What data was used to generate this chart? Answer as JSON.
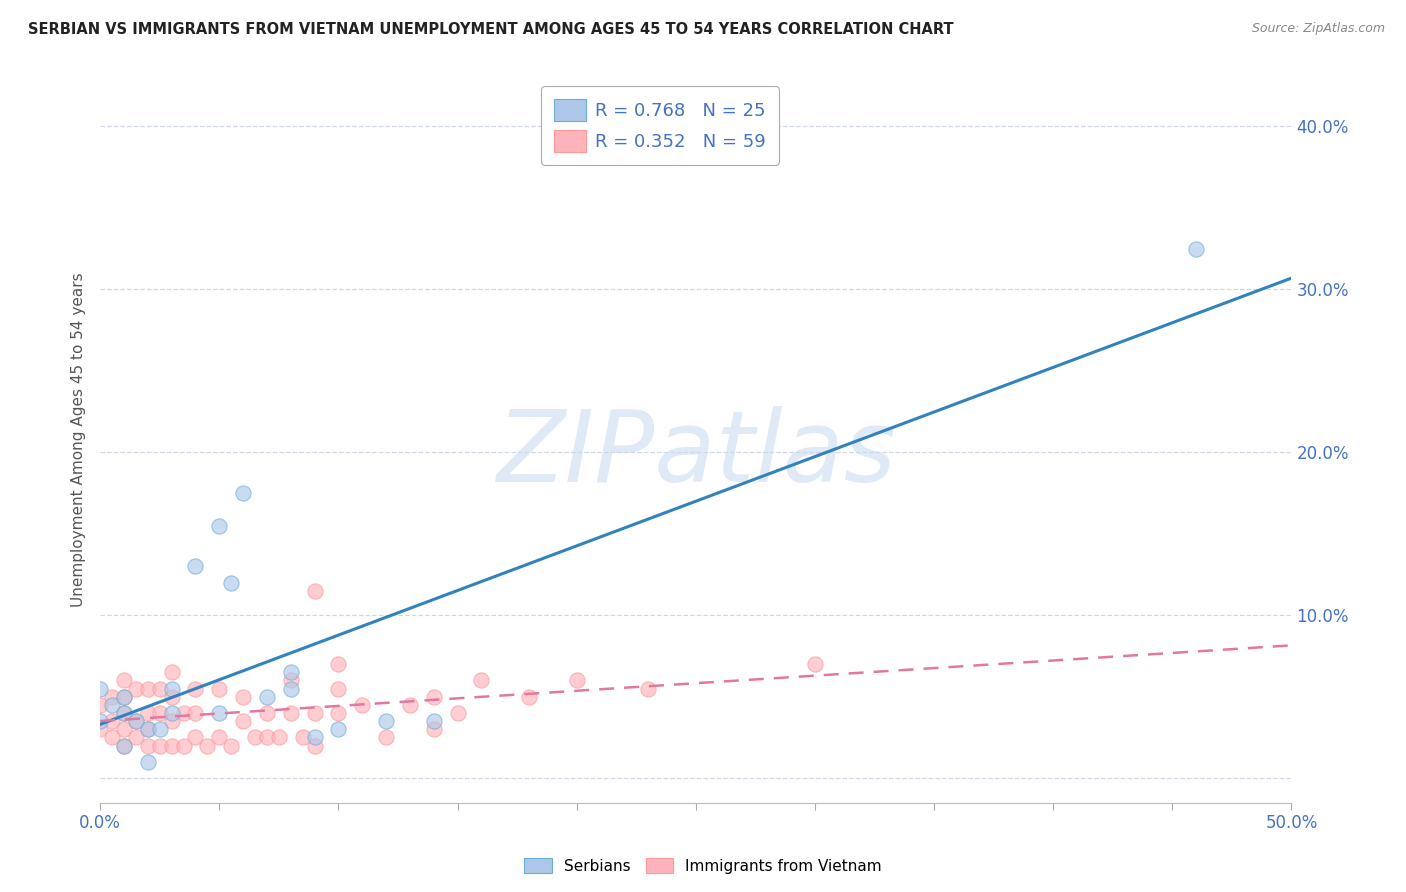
{
  "title": "SERBIAN VS IMMIGRANTS FROM VIETNAM UNEMPLOYMENT AMONG AGES 45 TO 54 YEARS CORRELATION CHART",
  "source": "Source: ZipAtlas.com",
  "ylabel": "Unemployment Among Ages 45 to 54 years",
  "xlabel": "",
  "xlim": [
    0,
    0.5
  ],
  "ylim": [
    -0.015,
    0.43
  ],
  "xticks": [
    0.0,
    0.05,
    0.1,
    0.15,
    0.2,
    0.25,
    0.3,
    0.35,
    0.4,
    0.45,
    0.5
  ],
  "ytick_positions": [
    0.0,
    0.1,
    0.2,
    0.3,
    0.4
  ],
  "ytick_labels": [
    "",
    "10.0%",
    "20.0%",
    "30.0%",
    "40.0%"
  ],
  "series1_name": "Serbians",
  "series1_R": 0.768,
  "series1_N": 25,
  "series1_color": "#aec7e8",
  "series1_edge_color": "#6baed6",
  "series1_line_color": "#3182bd",
  "series2_name": "Immigrants from Vietnam",
  "series2_R": 0.352,
  "series2_N": 59,
  "series2_color": "#ffb3ba",
  "series2_edge_color": "#fb9a99",
  "series2_line_color": "#e377a0",
  "watermark_text": "ZIPatlas",
  "watermark_color": "#c8d8f0",
  "background_color": "#ffffff",
  "grid_color": "#d0d8e8",
  "legend_text_color": "#4472c4",
  "axis_label_color": "#4472c4",
  "title_color": "#222222",
  "source_color": "#888888",
  "series1_x": [
    0.0,
    0.0,
    0.005,
    0.01,
    0.01,
    0.01,
    0.015,
    0.02,
    0.02,
    0.025,
    0.03,
    0.03,
    0.04,
    0.05,
    0.05,
    0.055,
    0.06,
    0.07,
    0.08,
    0.08,
    0.09,
    0.1,
    0.12,
    0.14,
    0.46
  ],
  "series1_y": [
    0.035,
    0.055,
    0.045,
    0.02,
    0.04,
    0.05,
    0.035,
    0.01,
    0.03,
    0.03,
    0.04,
    0.055,
    0.13,
    0.04,
    0.155,
    0.12,
    0.175,
    0.05,
    0.055,
    0.065,
    0.025,
    0.03,
    0.035,
    0.035,
    0.325
  ],
  "series2_x": [
    0.0,
    0.0,
    0.005,
    0.005,
    0.005,
    0.01,
    0.01,
    0.01,
    0.01,
    0.01,
    0.015,
    0.015,
    0.015,
    0.02,
    0.02,
    0.02,
    0.02,
    0.025,
    0.025,
    0.025,
    0.03,
    0.03,
    0.03,
    0.03,
    0.035,
    0.035,
    0.04,
    0.04,
    0.04,
    0.045,
    0.05,
    0.05,
    0.055,
    0.06,
    0.06,
    0.065,
    0.07,
    0.07,
    0.075,
    0.08,
    0.08,
    0.085,
    0.09,
    0.09,
    0.09,
    0.1,
    0.1,
    0.1,
    0.11,
    0.12,
    0.13,
    0.14,
    0.14,
    0.15,
    0.16,
    0.18,
    0.2,
    0.23,
    0.3
  ],
  "series2_y": [
    0.03,
    0.045,
    0.025,
    0.035,
    0.05,
    0.02,
    0.03,
    0.04,
    0.05,
    0.06,
    0.025,
    0.035,
    0.055,
    0.02,
    0.03,
    0.04,
    0.055,
    0.02,
    0.04,
    0.055,
    0.02,
    0.035,
    0.05,
    0.065,
    0.02,
    0.04,
    0.025,
    0.04,
    0.055,
    0.02,
    0.025,
    0.055,
    0.02,
    0.035,
    0.05,
    0.025,
    0.025,
    0.04,
    0.025,
    0.04,
    0.06,
    0.025,
    0.02,
    0.04,
    0.115,
    0.04,
    0.055,
    0.07,
    0.045,
    0.025,
    0.045,
    0.03,
    0.05,
    0.04,
    0.06,
    0.05,
    0.06,
    0.055,
    0.07
  ]
}
